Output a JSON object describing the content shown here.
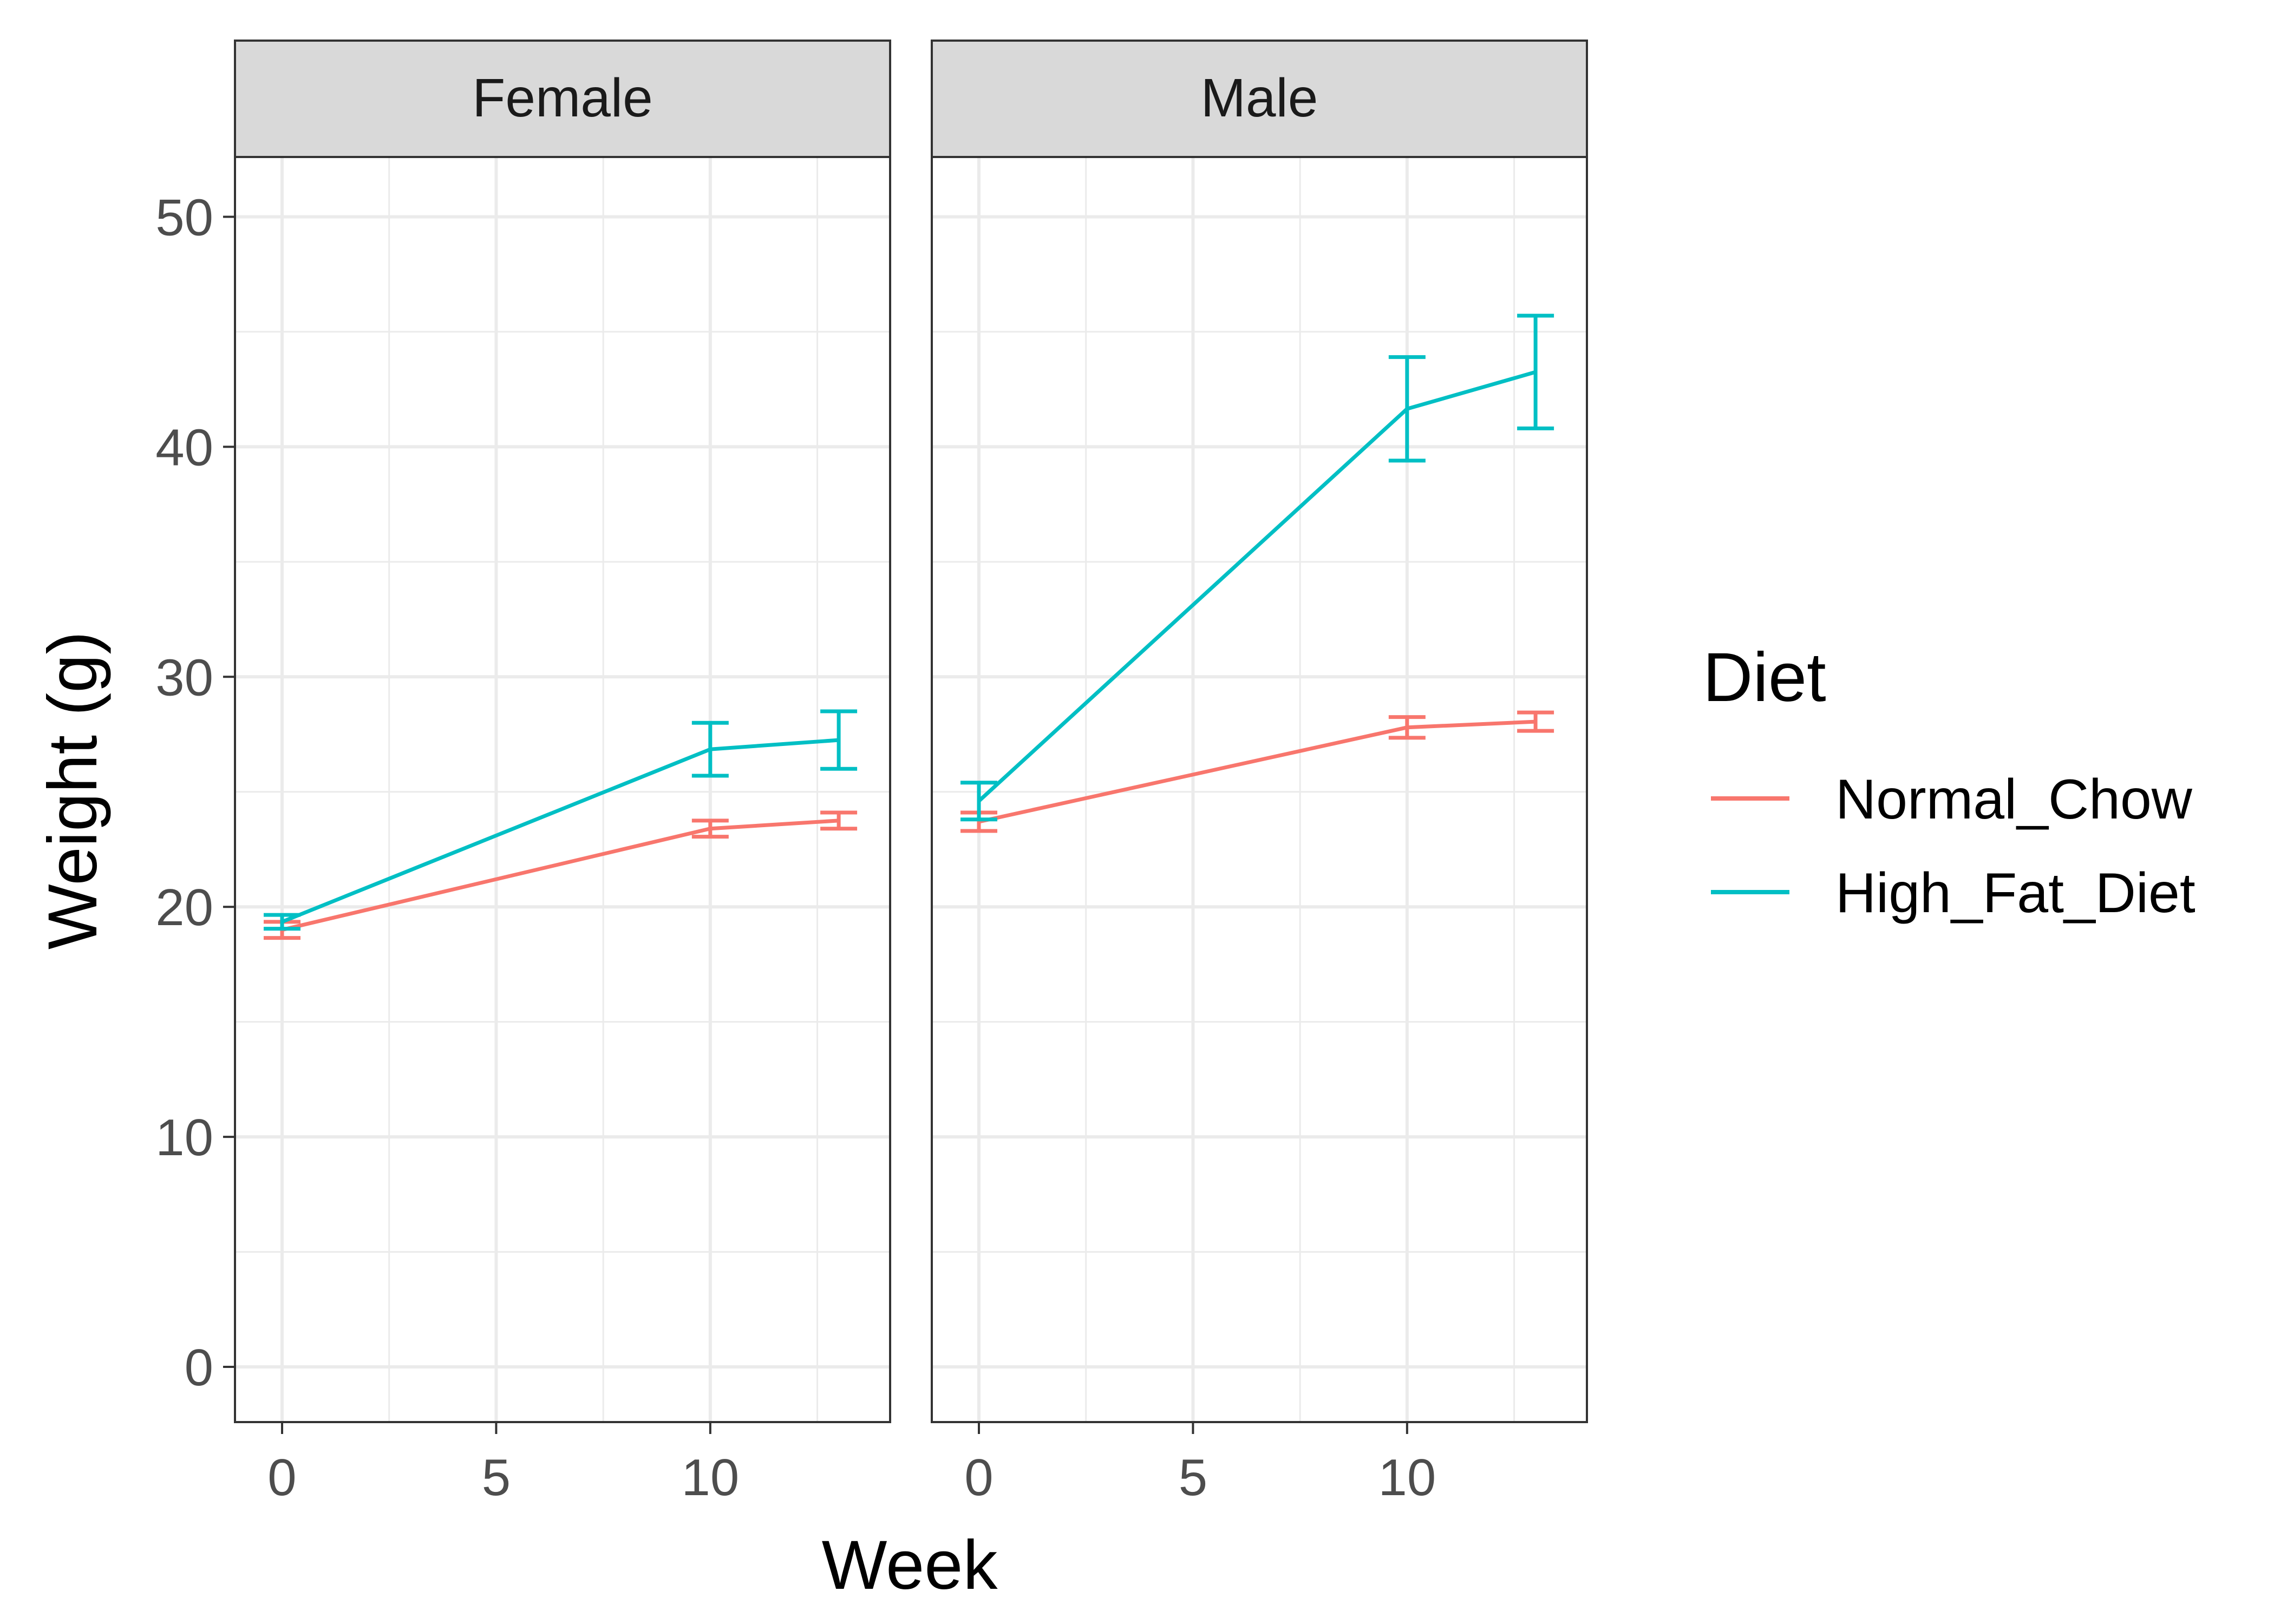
{
  "chart_data": {
    "type": "line",
    "xlabel": "Week",
    "ylabel": "Weight (g)",
    "xlim": [
      -1.1,
      14.2
    ],
    "ylim": [
      -2.4,
      52.6
    ],
    "x_ticks": [
      0,
      5,
      10
    ],
    "y_ticks": [
      0,
      10,
      20,
      30,
      40,
      50
    ],
    "grid": true,
    "legend": {
      "title": "Diet",
      "position": "right",
      "entries": [
        "Normal_Chow",
        "High_Fat_Diet"
      ]
    },
    "colors": {
      "Normal_Chow": "#F8766D",
      "High_Fat_Diet": "#00BFC4"
    },
    "error_bars": true,
    "panels": [
      {
        "facet": "Female",
        "series": [
          {
            "name": "Normal_Chow",
            "x": [
              0,
              10,
              13
            ],
            "y": [
              19.0,
              23.4,
              23.75
            ],
            "err": [
              0.35,
              0.35,
              0.35
            ]
          },
          {
            "name": "High_Fat_Diet",
            "x": [
              0,
              10,
              13
            ],
            "y": [
              19.35,
              26.85,
              27.25
            ],
            "err": [
              0.3,
              1.15,
              1.25
            ]
          }
        ]
      },
      {
        "facet": "Male",
        "series": [
          {
            "name": "Normal_Chow",
            "x": [
              0,
              10,
              13
            ],
            "y": [
              23.7,
              27.8,
              28.05
            ],
            "err": [
              0.4,
              0.45,
              0.4
            ]
          },
          {
            "name": "High_Fat_Diet",
            "x": [
              0,
              10,
              13
            ],
            "y": [
              24.6,
              41.65,
              43.25
            ],
            "err": [
              0.8,
              2.25,
              2.45
            ]
          }
        ]
      }
    ]
  }
}
